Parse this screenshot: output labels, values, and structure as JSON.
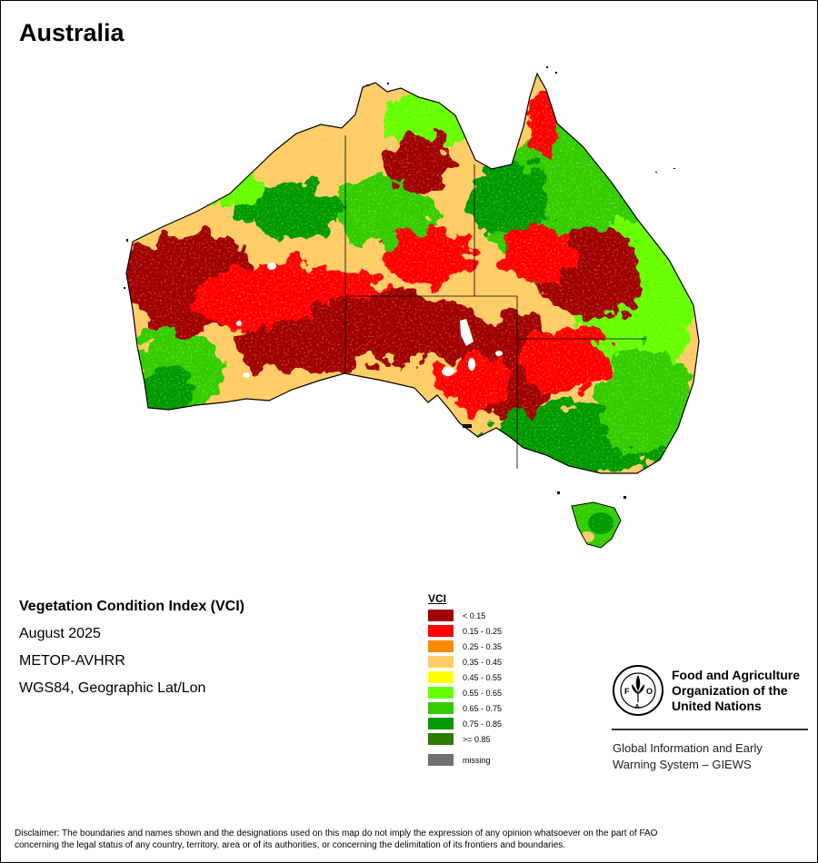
{
  "title": "Australia",
  "info": {
    "index_name": "Vegetation Condition Index (VCI)",
    "date": "August 2025",
    "sensor": "METOP-AVHRR",
    "projection": "WGS84, Geographic Lat/Lon"
  },
  "legend": {
    "title": "VCI",
    "classes": [
      {
        "label": "< 0.15",
        "color": "#a00000"
      },
      {
        "label": "0.15 - 0.25",
        "color": "#ff0000"
      },
      {
        "label": "0.25 - 0.35",
        "color": "#ff8c00"
      },
      {
        "label": "0.35 - 0.45",
        "color": "#ffcc66"
      },
      {
        "label": "0.45 - 0.55",
        "color": "#ffff00"
      },
      {
        "label": "0.55 - 0.65",
        "color": "#66ff00"
      },
      {
        "label": "0.65 - 0.75",
        "color": "#33cc00"
      },
      {
        "label": "0.75 - 0.85",
        "color": "#009900"
      },
      {
        "label": ">= 0.85",
        "color": "#2d7a00"
      }
    ],
    "missing": {
      "label": "missing",
      "color": "#707070"
    }
  },
  "fao": {
    "org_line1": "Food and Agriculture",
    "org_line2": "Organization of the",
    "org_line3": "United Nations",
    "giews_line1": "Global Information and Early",
    "giews_line2": "Warning System – GIEWS"
  },
  "disclaimer": {
    "line1": "Disclaimer: The boundaries and names shown and the designations used on this map do not imply the expression of any opinion whatsoever on the part of FAO",
    "line2": "concerning the legal status of any country, territory, area or of its authorities, or concerning the delimitation of its frontiers and boundaries."
  }
}
